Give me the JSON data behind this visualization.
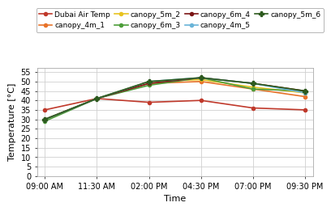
{
  "x_labels": [
    "09:00 AM",
    "11:30 AM",
    "02:00 PM",
    "04:30 PM",
    "07:00 PM",
    "09:30 PM"
  ],
  "x_values": [
    0,
    1,
    2,
    3,
    4,
    5
  ],
  "series": [
    {
      "label": "Dubai Air Temp",
      "color": "#c0392b",
      "marker": "o",
      "markersize": 3,
      "linewidth": 1.2,
      "values": [
        35,
        41,
        39,
        40,
        36,
        35
      ]
    },
    {
      "label": "canopy_4m_1",
      "color": "#e8732a",
      "marker": "o",
      "markersize": 3,
      "linewidth": 1.2,
      "values": [
        30,
        41,
        49,
        50,
        46,
        42
      ]
    },
    {
      "label": "canopy_5m_2",
      "color": "#e8c320",
      "marker": "o",
      "markersize": 3,
      "linewidth": 1.2,
      "values": [
        30,
        41,
        50,
        51,
        47,
        44
      ]
    },
    {
      "label": "canopy_6m_3",
      "color": "#4d9e3a",
      "marker": "o",
      "markersize": 3,
      "linewidth": 1.2,
      "values": [
        29,
        41,
        48,
        52,
        46,
        45
      ]
    },
    {
      "label": "canopy_6m_4",
      "color": "#7b1515",
      "marker": "o",
      "markersize": 3,
      "linewidth": 1.2,
      "values": [
        30,
        41,
        49,
        52,
        49,
        45
      ]
    },
    {
      "label": "canopy_4m_5",
      "color": "#6ab4d8",
      "marker": "o",
      "markersize": 3,
      "linewidth": 1.2,
      "values": [
        30,
        41,
        50,
        52,
        49,
        44
      ]
    },
    {
      "label": "canopy_5m_6",
      "color": "#2d5a1e",
      "marker": "P",
      "markersize": 4,
      "linewidth": 1.2,
      "values": [
        30,
        41,
        50,
        52,
        49,
        45
      ]
    }
  ],
  "xlabel": "Time",
  "ylabel": "Temperature [°C]",
  "ylim": [
    0,
    57
  ],
  "yticks": [
    0,
    5,
    10,
    15,
    20,
    25,
    30,
    35,
    40,
    45,
    50,
    55
  ],
  "grid_color": "#d0d0d0",
  "background_color": "#ffffff",
  "legend_fontsize": 6.5,
  "axis_label_fontsize": 8,
  "tick_fontsize": 7
}
